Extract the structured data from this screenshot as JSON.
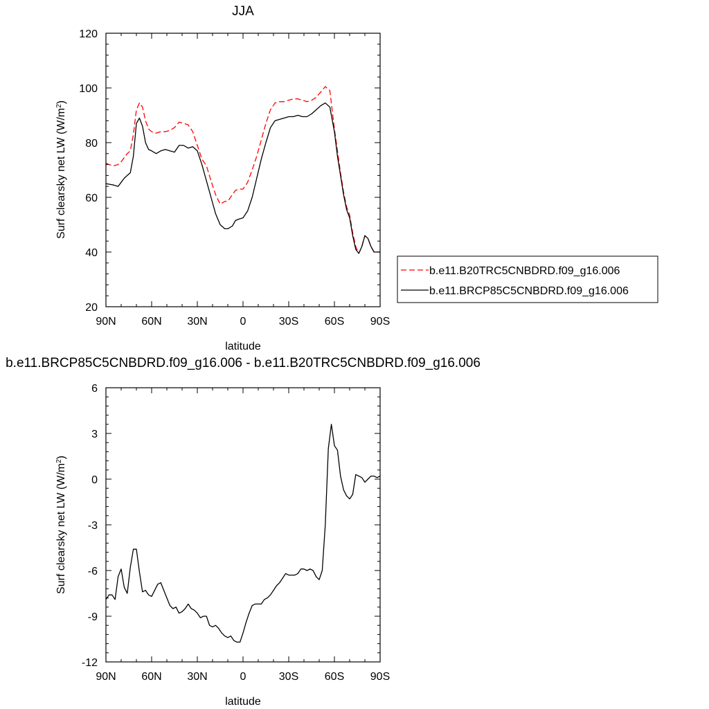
{
  "chart_data": [
    {
      "type": "line",
      "title": "JJA",
      "xlabel": "latitude",
      "ylabel": "Surf clearsky net LW (W/m",
      "ylabel_sup": "2",
      "ylabel_close": ")",
      "xlim": [
        90,
        -90
      ],
      "ylim": [
        20,
        120
      ],
      "xticks": [
        90,
        60,
        30,
        0,
        -30,
        -60,
        -90
      ],
      "xtick_labels": [
        "90N",
        "60N",
        "30N",
        "0",
        "30S",
        "60S",
        "90S"
      ],
      "yticks": [
        20,
        40,
        60,
        80,
        100,
        120
      ],
      "ytick_labels": [
        "20",
        "40",
        "60",
        "80",
        "100",
        "120"
      ],
      "legend": "right",
      "series": [
        {
          "name": "b.e11.B20TRC5CNBDRD.f09_g16.006",
          "color": "#ff0000",
          "dash": "dashed",
          "x": [
            90,
            88,
            85,
            82,
            80,
            78,
            76,
            74,
            72,
            70,
            68,
            66,
            64,
            62,
            60,
            57,
            54,
            51,
            48,
            45,
            42,
            39,
            36,
            33,
            30,
            27,
            24,
            21,
            18,
            15,
            12,
            10,
            7,
            5,
            3,
            0,
            -3,
            -6,
            -9,
            -12,
            -15,
            -18,
            -21,
            -24,
            -27,
            -30,
            -33,
            -36,
            -39,
            -42,
            -45,
            -48,
            -51,
            -54,
            -57,
            -60,
            -62,
            -64,
            -66,
            -68,
            -70,
            -72,
            -74,
            -76,
            -78,
            -80,
            -82,
            -84,
            -86,
            -88,
            -90
          ],
          "values": [
            72.5,
            72,
            71.5,
            72,
            73,
            74.5,
            76,
            77,
            83,
            92,
            94.5,
            93,
            88,
            85,
            84,
            83.5,
            84,
            84,
            84.5,
            85.5,
            87.5,
            87,
            86.5,
            84,
            79,
            74,
            71.5,
            66,
            61,
            57.5,
            58.5,
            58.5,
            61,
            62.5,
            63,
            63,
            65.5,
            70,
            75,
            81,
            87,
            92,
            94.5,
            95,
            95,
            95.5,
            96,
            96,
            95.5,
            95,
            95.5,
            96.5,
            98.5,
            100.5,
            99,
            85,
            77,
            69,
            62,
            56.5,
            53.5,
            47,
            42,
            39.5,
            42,
            46,
            45,
            42,
            40,
            40,
            40
          ]
        },
        {
          "name": "b.e11.BRCP85C5CNBDRD.f09_g16.006",
          "color": "#000000",
          "dash": "solid",
          "x": [
            90,
            88,
            85,
            82,
            80,
            78,
            76,
            74,
            72,
            70,
            68,
            66,
            64,
            62,
            60,
            57,
            54,
            51,
            48,
            45,
            42,
            39,
            36,
            33,
            30,
            27,
            24,
            21,
            18,
            15,
            12,
            10,
            7,
            5,
            3,
            0,
            -3,
            -6,
            -9,
            -12,
            -15,
            -18,
            -21,
            -24,
            -27,
            -30,
            -33,
            -36,
            -39,
            -42,
            -45,
            -48,
            -51,
            -54,
            -57,
            -60,
            -62,
            -64,
            -66,
            -68,
            -70,
            -72,
            -74,
            -76,
            -78,
            -80,
            -82,
            -84,
            -86,
            -88,
            -90
          ],
          "values": [
            65,
            64.8,
            64.5,
            64,
            65.5,
            67,
            68,
            69,
            75,
            87,
            89,
            86,
            80,
            77.5,
            77,
            76,
            77,
            77.5,
            77,
            76.5,
            79,
            79,
            78,
            78.5,
            77,
            72,
            66,
            60,
            54,
            50,
            48.5,
            48.5,
            49.5,
            51.5,
            52,
            52.5,
            55,
            60,
            67,
            74,
            80,
            85.5,
            88,
            88.5,
            89,
            89.5,
            89.5,
            90,
            89.5,
            89.5,
            90.5,
            92,
            93.5,
            94.5,
            93,
            84,
            75,
            68,
            61,
            55.5,
            52.5,
            46,
            41,
            39.5,
            42,
            46,
            45,
            42,
            40,
            40,
            40
          ]
        }
      ]
    },
    {
      "type": "line",
      "title": "b.e11.BRCP85C5CNBDRD.f09_g16.006 - b.e11.B20TRC5CNBDRD.f09_g16.006",
      "xlabel": "latitude",
      "ylabel": "Surf clearsky net LW (W/m",
      "ylabel_sup": "2",
      "ylabel_close": ")",
      "xlim": [
        90,
        -90
      ],
      "ylim": [
        -12,
        6
      ],
      "xticks": [
        90,
        60,
        30,
        0,
        -30,
        -60,
        -90
      ],
      "xtick_labels": [
        "90N",
        "60N",
        "30N",
        "0",
        "30S",
        "60S",
        "90S"
      ],
      "yticks": [
        -12,
        -9,
        -6,
        -3,
        0,
        3,
        6
      ],
      "ytick_labels": [
        "-12",
        "-9",
        "-6",
        "-3",
        "0",
        "3",
        "6"
      ],
      "series": [
        {
          "color": "#000000",
          "dash": "solid",
          "x": [
            90,
            88,
            86,
            84,
            82,
            80,
            78,
            76,
            74,
            72,
            70,
            68,
            66,
            64,
            62,
            60,
            58,
            56,
            54,
            52,
            50,
            48,
            46,
            44,
            42,
            40,
            38,
            36,
            34,
            32,
            30,
            28,
            26,
            24,
            22,
            20,
            18,
            16,
            14,
            12,
            10,
            8,
            6,
            4,
            2,
            0,
            -2,
            -4,
            -6,
            -8,
            -10,
            -12,
            -14,
            -16,
            -18,
            -20,
            -22,
            -24,
            -26,
            -28,
            -30,
            -32,
            -34,
            -36,
            -38,
            -40,
            -42,
            -44,
            -46,
            -48,
            -50,
            -52,
            -54,
            -56,
            -58,
            -60,
            -62,
            -64,
            -66,
            -68,
            -70,
            -72,
            -74,
            -76,
            -78,
            -80,
            -82,
            -84,
            -86,
            -88,
            -90
          ],
          "values": [
            -7.9,
            -7.6,
            -7.6,
            -7.9,
            -6.4,
            -5.9,
            -7.1,
            -7.5,
            -5.8,
            -4.6,
            -4.6,
            -6.1,
            -7.4,
            -7.3,
            -7.6,
            -7.7,
            -7.3,
            -6.9,
            -6.8,
            -7.3,
            -7.8,
            -8.3,
            -8.5,
            -8.4,
            -8.8,
            -8.7,
            -8.5,
            -8.2,
            -8.5,
            -8.6,
            -8.8,
            -9.1,
            -9.0,
            -9.0,
            -9.6,
            -9.7,
            -9.6,
            -9.8,
            -10.1,
            -10.3,
            -10.4,
            -10.3,
            -10.6,
            -10.7,
            -10.7,
            -10.1,
            -9.4,
            -8.8,
            -8.3,
            -8.2,
            -8.2,
            -8.2,
            -7.9,
            -7.8,
            -7.6,
            -7.3,
            -7.0,
            -6.8,
            -6.5,
            -6.2,
            -6.3,
            -6.3,
            -6.3,
            -6.2,
            -5.9,
            -5.9,
            -6.0,
            -5.9,
            -6.0,
            -6.4,
            -6.6,
            -6.0,
            -3.0,
            2.0,
            3.6,
            2.2,
            1.9,
            0.2,
            -0.7,
            -1.1,
            -1.3,
            -1.0,
            0.3,
            0.2,
            0.1,
            -0.2,
            0.0,
            0.2,
            0.2,
            0.1,
            0.2
          ]
        }
      ]
    }
  ]
}
